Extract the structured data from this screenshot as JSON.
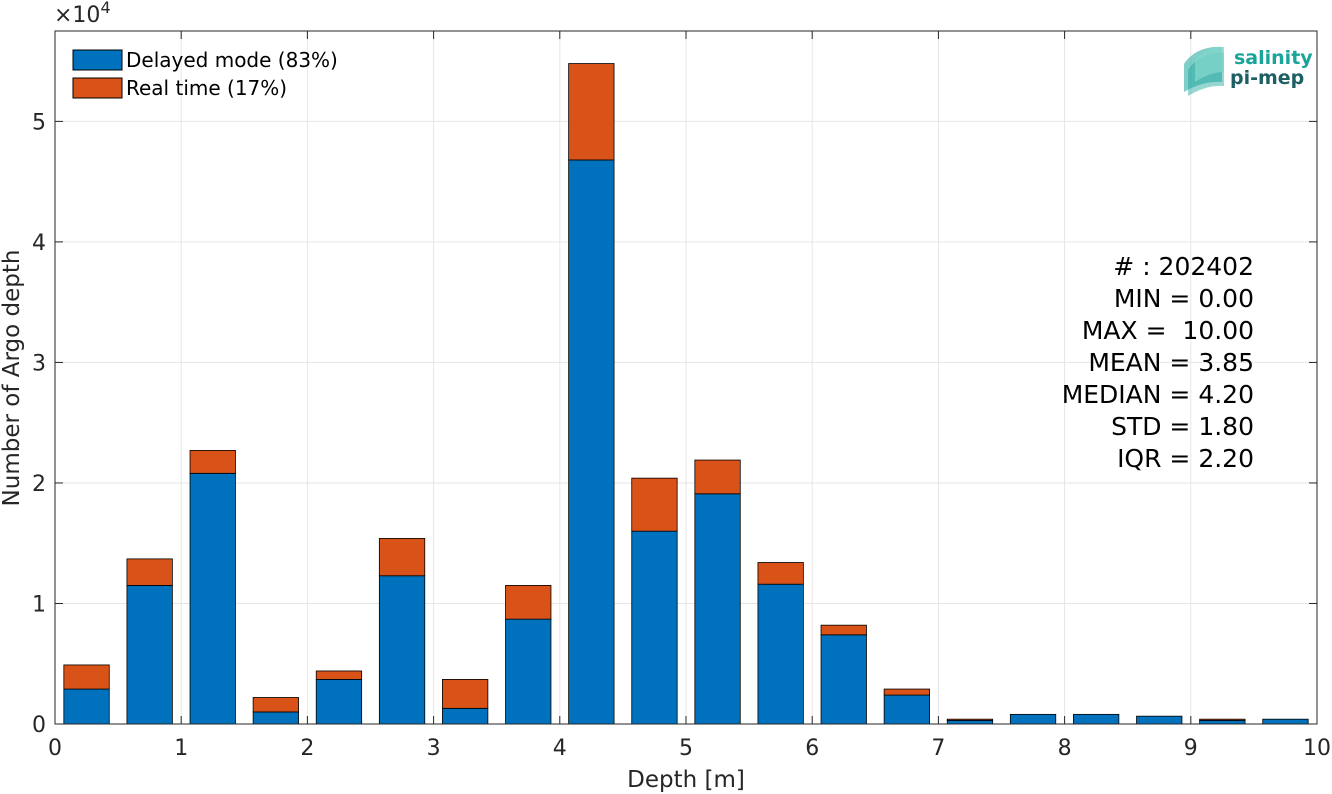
{
  "chart_data": {
    "type": "bar",
    "stacked": true,
    "xlabel": "Depth [m]",
    "ylabel": "Number of Argo depth",
    "xlim": [
      0,
      10
    ],
    "ylim": [
      0,
      57500
    ],
    "xticks": [
      "0",
      "1",
      "2",
      "3",
      "4",
      "5",
      "6",
      "7",
      "8",
      "9",
      "10"
    ],
    "yticks": [
      "0",
      "1",
      "2",
      "3",
      "4",
      "5"
    ],
    "y_exponent_label": "×10",
    "y_exponent_power": "4",
    "grid": true,
    "bin_width": 0.5,
    "bar_centers": [
      0.25,
      0.75,
      1.25,
      1.75,
      2.25,
      2.75,
      3.25,
      3.75,
      4.25,
      4.75,
      5.25,
      5.75,
      6.25,
      6.75,
      7.25,
      7.75,
      8.25,
      8.75,
      9.25,
      9.75
    ],
    "series": [
      {
        "name": "Delayed mode (83%)",
        "color": "#0072BD",
        "values": [
          2900,
          11500,
          20800,
          1000,
          3700,
          12300,
          1300,
          8700,
          46800,
          16000,
          19100,
          11600,
          7400,
          2400,
          300,
          800,
          800,
          650,
          300,
          400
        ]
      },
      {
        "name": "Real time (17%)",
        "color": "#D95319",
        "values": [
          2000,
          2200,
          1900,
          1200,
          700,
          3100,
          2400,
          2800,
          8000,
          4400,
          2800,
          1800,
          800,
          500,
          100,
          0,
          0,
          0,
          100,
          0
        ]
      }
    ],
    "legend_placement": "top-left",
    "stats": [
      "# : 202402",
      "MIN = 0.00",
      "MAX =  10.00",
      "MEAN = 3.85",
      "MEDIAN = 4.20",
      "STD = 1.80",
      "IQR = 2.20"
    ]
  },
  "logo": {
    "line1": "salinity",
    "line2": "pi-mep",
    "color1": "#1aa59b",
    "color2": "#1e5f64"
  }
}
